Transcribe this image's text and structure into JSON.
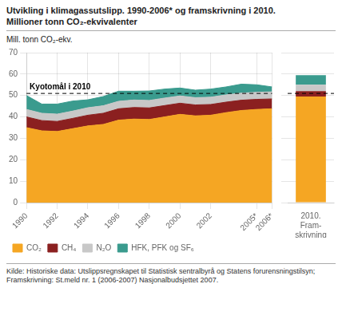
{
  "chart_data": [
    {
      "type": "area",
      "stacked": true,
      "title": "Utvikling i klimagassutslipp. 1990-2006* og framskrivning i 2010.",
      "subtitle": "Millioner tonn CO₂-ekvivalenter",
      "ylabel": "Mill. tonn CO₂-ekv.",
      "x": [
        1990,
        1991,
        1992,
        1993,
        1994,
        1995,
        1996,
        1997,
        1998,
        1999,
        2000,
        2001,
        2002,
        2003,
        2004,
        2005,
        2006
      ],
      "series": [
        {
          "name": "CO₂",
          "color": "#F5A623",
          "values": [
            35.0,
            33.5,
            33.2,
            34.5,
            35.8,
            36.5,
            38.5,
            39.0,
            38.8,
            40.0,
            41.2,
            40.5,
            40.8,
            42.0,
            43.0,
            43.5,
            43.8
          ]
        },
        {
          "name": "CH₄",
          "color": "#8B2020",
          "values": [
            5.0,
            4.8,
            4.7,
            4.8,
            5.0,
            5.2,
            5.3,
            5.4,
            5.4,
            5.3,
            5.2,
            5.1,
            5.0,
            4.9,
            4.8,
            4.7,
            4.6
          ]
        },
        {
          "name": "N₂O",
          "color": "#C8C8C8",
          "values": [
            3.5,
            3.4,
            3.4,
            3.4,
            3.5,
            3.5,
            3.5,
            3.5,
            3.5,
            3.5,
            3.4,
            3.4,
            3.4,
            3.4,
            3.3,
            3.3,
            3.3
          ]
        },
        {
          "name": "HFK, PFK og SF₆",
          "color": "#3A9B8E",
          "values": [
            6.5,
            4.3,
            4.7,
            4.7,
            3.7,
            4.3,
            4.7,
            4.1,
            4.4,
            4.2,
            3.7,
            3.5,
            3.8,
            3.7,
            4.2,
            3.5,
            2.3
          ]
        }
      ],
      "xlim": [
        1990,
        2006
      ],
      "xticks": [
        1990,
        1992,
        1994,
        1996,
        1998,
        2000,
        2002,
        {
          "value": 2005,
          "label": "2005*"
        },
        {
          "value": 2006,
          "label": "2006*"
        }
      ],
      "ylim": [
        0,
        70
      ],
      "yticks": [
        0,
        10,
        20,
        30,
        40,
        50,
        60,
        70
      ],
      "grid": true,
      "legend": "bottom",
      "annotations": [
        {
          "text": "Kyotomål i 2010",
          "y": 50.96
        }
      ],
      "source": [
        "Kilde: Historiske data: Utslippsregnskapet til Statistisk sentralbyrå og Statens forurensningstilsyn;",
        "Framskrivning: St.meld nr. 1 (2006-2007) Nasjonalbudsjettet 2007."
      ]
    },
    {
      "type": "bar",
      "stacked": true,
      "categories": [
        "2010.\nFram-\nskrivning"
      ],
      "series": [
        {
          "name": "CO₂",
          "color": "#F5A623",
          "values": [
            49.5
          ]
        },
        {
          "name": "CH₄",
          "color": "#8B2020",
          "values": [
            2.5
          ]
        },
        {
          "name": "N₂O",
          "color": "#C8C8C8",
          "values": [
            3.0
          ]
        },
        {
          "name": "HFK, PFK og SF₆",
          "color": "#3A9B8E",
          "values": [
            4.5
          ]
        }
      ],
      "ylim": [
        0,
        70
      ],
      "yticks": [
        0,
        10,
        20,
        30,
        40,
        50,
        60,
        70
      ],
      "grid": "y",
      "tick_labels": "x",
      "annotations": [
        {
          "y": 50.96
        }
      ]
    }
  ]
}
